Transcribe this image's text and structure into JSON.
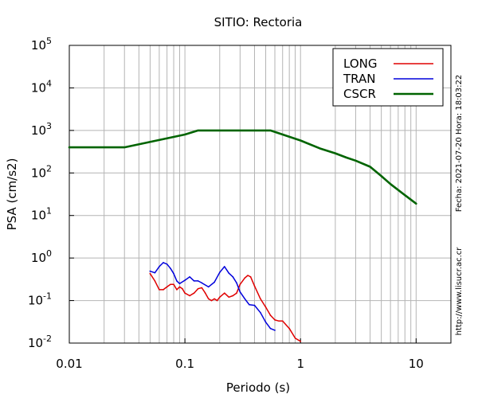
{
  "chart_data": {
    "type": "line",
    "title": "SITIO: Rectoria",
    "xlabel": "Periodo (s)",
    "ylabel": "PSA (cm/s2)",
    "x_scale": "log",
    "y_scale": "log",
    "xlim": [
      0.01,
      20
    ],
    "ylim": [
      0.01,
      100000
    ],
    "grid": true,
    "legend_position": "top-right",
    "x_ticks": [
      {
        "value": 0.01,
        "label": "0.01"
      },
      {
        "value": 0.1,
        "label": "0.1"
      },
      {
        "value": 1,
        "label": "1"
      },
      {
        "value": 10,
        "label": "10"
      }
    ],
    "y_ticks": [
      {
        "value": 0.01,
        "base": "10",
        "exp": "-2"
      },
      {
        "value": 0.1,
        "base": "10",
        "exp": "-1"
      },
      {
        "value": 1,
        "base": "10",
        "exp": "0"
      },
      {
        "value": 10,
        "base": "10",
        "exp": "1"
      },
      {
        "value": 100,
        "base": "10",
        "exp": "2"
      },
      {
        "value": 1000,
        "base": "10",
        "exp": "3"
      },
      {
        "value": 10000,
        "base": "10",
        "exp": "4"
      },
      {
        "value": 100000,
        "base": "10",
        "exp": "5"
      }
    ],
    "series": [
      {
        "name": "LONG",
        "color": "#e00000",
        "width": 1.5,
        "points": [
          [
            0.05,
            0.43
          ],
          [
            0.055,
            0.29
          ],
          [
            0.06,
            0.18
          ],
          [
            0.065,
            0.18
          ],
          [
            0.07,
            0.21
          ],
          [
            0.075,
            0.24
          ],
          [
            0.08,
            0.24
          ],
          [
            0.085,
            0.18
          ],
          [
            0.09,
            0.21
          ],
          [
            0.095,
            0.19
          ],
          [
            0.1,
            0.15
          ],
          [
            0.11,
            0.13
          ],
          [
            0.12,
            0.15
          ],
          [
            0.13,
            0.19
          ],
          [
            0.14,
            0.2
          ],
          [
            0.15,
            0.15
          ],
          [
            0.16,
            0.11
          ],
          [
            0.17,
            0.1
          ],
          [
            0.18,
            0.11
          ],
          [
            0.19,
            0.1
          ],
          [
            0.2,
            0.12
          ],
          [
            0.22,
            0.15
          ],
          [
            0.24,
            0.12
          ],
          [
            0.26,
            0.13
          ],
          [
            0.28,
            0.15
          ],
          [
            0.3,
            0.24
          ],
          [
            0.33,
            0.34
          ],
          [
            0.35,
            0.39
          ],
          [
            0.37,
            0.36
          ],
          [
            0.4,
            0.22
          ],
          [
            0.45,
            0.11
          ],
          [
            0.5,
            0.07
          ],
          [
            0.55,
            0.045
          ],
          [
            0.6,
            0.035
          ],
          [
            0.65,
            0.033
          ],
          [
            0.7,
            0.033
          ],
          [
            0.8,
            0.022
          ],
          [
            0.9,
            0.013
          ],
          [
            1.0,
            0.011
          ]
        ]
      },
      {
        "name": "TRAN",
        "color": "#0000dc",
        "width": 1.5,
        "points": [
          [
            0.05,
            0.49
          ],
          [
            0.055,
            0.45
          ],
          [
            0.06,
            0.63
          ],
          [
            0.065,
            0.78
          ],
          [
            0.07,
            0.72
          ],
          [
            0.075,
            0.57
          ],
          [
            0.08,
            0.43
          ],
          [
            0.085,
            0.29
          ],
          [
            0.09,
            0.25
          ],
          [
            0.1,
            0.3
          ],
          [
            0.11,
            0.36
          ],
          [
            0.12,
            0.29
          ],
          [
            0.13,
            0.29
          ],
          [
            0.14,
            0.26
          ],
          [
            0.16,
            0.21
          ],
          [
            0.18,
            0.27
          ],
          [
            0.2,
            0.46
          ],
          [
            0.22,
            0.63
          ],
          [
            0.24,
            0.44
          ],
          [
            0.26,
            0.36
          ],
          [
            0.28,
            0.26
          ],
          [
            0.3,
            0.16
          ],
          [
            0.33,
            0.11
          ],
          [
            0.36,
            0.08
          ],
          [
            0.4,
            0.077
          ],
          [
            0.45,
            0.052
          ],
          [
            0.5,
            0.031
          ],
          [
            0.55,
            0.022
          ],
          [
            0.6,
            0.02
          ]
        ]
      },
      {
        "name": "CSCR",
        "color": "#006400",
        "width": 2.6,
        "points": [
          [
            0.01,
            400
          ],
          [
            0.03,
            400
          ],
          [
            0.1,
            800
          ],
          [
            0.13,
            1000
          ],
          [
            0.55,
            1000
          ],
          [
            1.0,
            580
          ],
          [
            1.5,
            370
          ],
          [
            2.0,
            290
          ],
          [
            2.5,
            230
          ],
          [
            3.0,
            195
          ],
          [
            4.0,
            140
          ],
          [
            5.0,
            85
          ],
          [
            6.0,
            55
          ],
          [
            8.0,
            30
          ],
          [
            10.0,
            19
          ]
        ]
      }
    ]
  },
  "sidebar": {
    "date_text": "Fecha: 2021-07-20 Hora: 18:03:22",
    "url_text": "http://www.lisucr.ac.cr"
  }
}
